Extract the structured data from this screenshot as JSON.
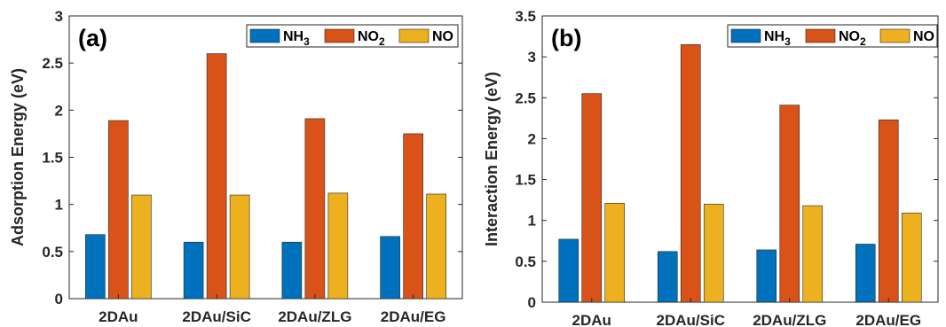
{
  "chart_data": [
    {
      "panel_label": "(a)",
      "type": "bar",
      "title": "",
      "xlabel": "",
      "ylabel": "Adsorption Energy (eV)",
      "categories": [
        "2DAu",
        "2DAu/SiC",
        "2DAu/ZLG",
        "2DAu/EG"
      ],
      "ylim": [
        0,
        3
      ],
      "yticks": [
        "0",
        "0.5",
        "1",
        "1.5",
        "2",
        "2.5",
        "3"
      ],
      "legend_position": "top-right",
      "grid": false,
      "series": [
        {
          "name": "NH3",
          "legend_main": "NH",
          "legend_sub": "3",
          "color": "#0072BD",
          "values": [
            0.68,
            0.6,
            0.6,
            0.66
          ]
        },
        {
          "name": "NO2",
          "legend_main": "NO",
          "legend_sub": "2",
          "color": "#D95319",
          "values": [
            1.89,
            2.6,
            1.91,
            1.75
          ]
        },
        {
          "name": "NO",
          "legend_main": "NO",
          "legend_sub": "",
          "color": "#EDB120",
          "values": [
            1.1,
            1.1,
            1.12,
            1.11
          ]
        }
      ]
    },
    {
      "panel_label": "(b)",
      "type": "bar",
      "title": "",
      "xlabel": "",
      "ylabel": "Interaction Energy (eV)",
      "categories": [
        "2DAu",
        "2DAu/SiC",
        "2DAu/ZLG",
        "2DAu/EG"
      ],
      "ylim": [
        0,
        3.5
      ],
      "yticks": [
        "0",
        "0.5",
        "1",
        "1.5",
        "2",
        "2.5",
        "3",
        "3.5"
      ],
      "legend_position": "top-right",
      "grid": false,
      "series": [
        {
          "name": "NH3",
          "legend_main": "NH",
          "legend_sub": "3",
          "color": "#0072BD",
          "values": [
            0.77,
            0.62,
            0.64,
            0.71
          ]
        },
        {
          "name": "NO2",
          "legend_main": "NO",
          "legend_sub": "2",
          "color": "#D95319",
          "values": [
            2.55,
            3.15,
            2.41,
            2.23
          ]
        },
        {
          "name": "NO",
          "legend_main": "NO",
          "legend_sub": "",
          "color": "#EDB120",
          "values": [
            1.21,
            1.2,
            1.18,
            1.09
          ]
        }
      ]
    }
  ]
}
